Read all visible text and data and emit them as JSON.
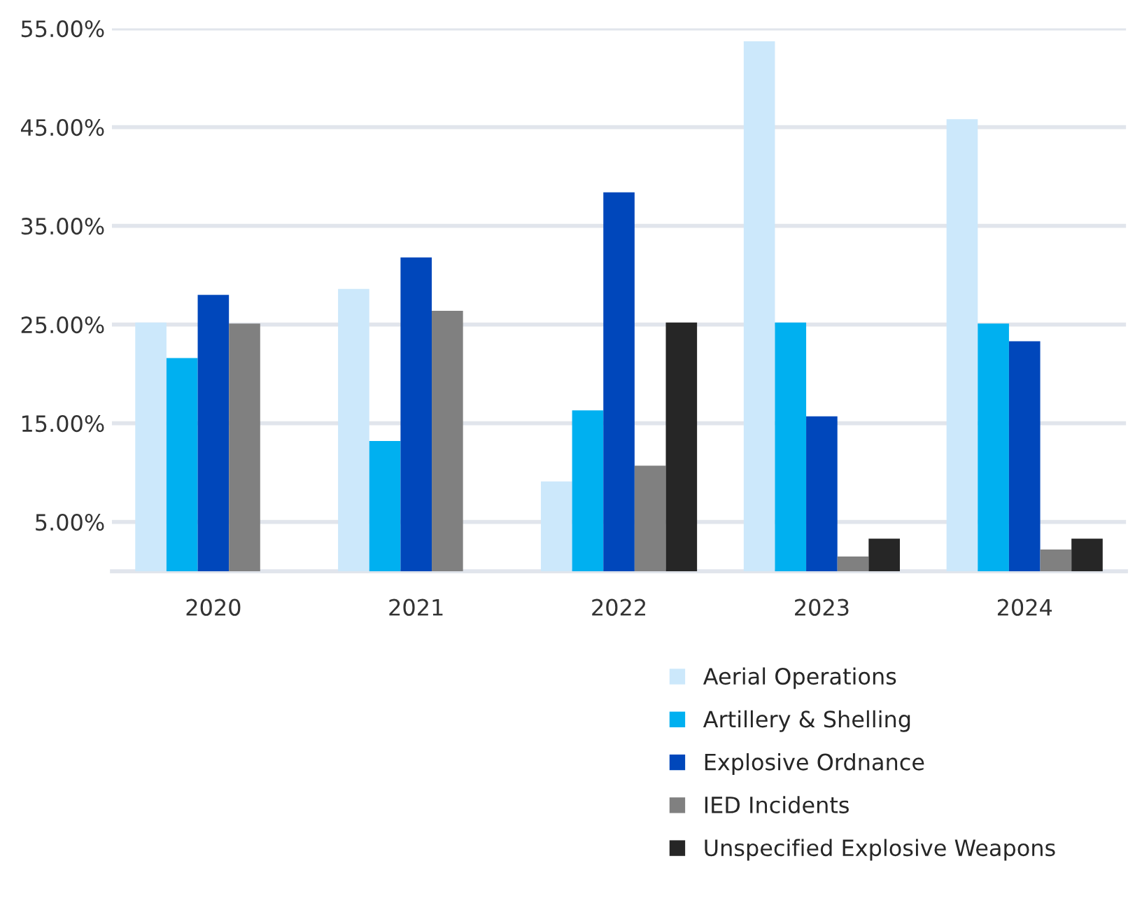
{
  "chart_data": {
    "type": "bar",
    "categories": [
      "2020",
      "2021",
      "2022",
      "2023",
      "2024"
    ],
    "series": [
      {
        "name": "Aerial Operations",
        "color": "#cce8fb",
        "values": [
          25.2,
          28.6,
          9.1,
          53.7,
          45.8
        ]
      },
      {
        "name": "Artillery & Shelling",
        "color": "#00b0f0",
        "values": [
          21.6,
          13.2,
          16.3,
          25.2,
          25.1
        ]
      },
      {
        "name": "Explosive Ordnance",
        "color": "#0047bb",
        "values": [
          28.0,
          31.8,
          38.4,
          15.7,
          23.3
        ]
      },
      {
        "name": "IED Incidents",
        "color": "#808080",
        "values": [
          25.1,
          26.4,
          10.7,
          1.5,
          2.2
        ]
      },
      {
        "name": "Unspecified Explosive Weapons",
        "color": "#262626",
        "values": [
          null,
          null,
          25.2,
          3.3,
          3.3
        ]
      }
    ],
    "ylim": [
      0,
      55
    ],
    "yticks": [
      {
        "value": 5,
        "label": "5.00%"
      },
      {
        "value": 15,
        "label": "15.00%"
      },
      {
        "value": 25,
        "label": "25.00%"
      },
      {
        "value": 35,
        "label": "35.00%"
      },
      {
        "value": 45,
        "label": "45.00%"
      },
      {
        "value": 55,
        "label": "55.00%"
      }
    ],
    "grid": "y",
    "legend": "bottom right"
  }
}
